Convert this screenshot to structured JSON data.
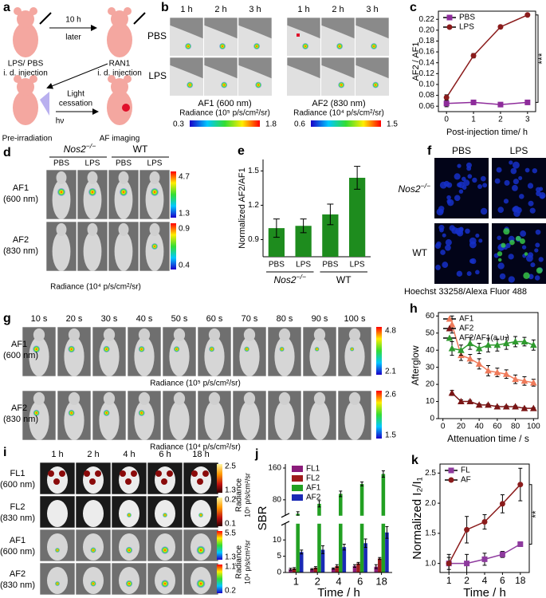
{
  "panels": {
    "a": {
      "label": "a",
      "texts": [
        "LPS/ PBS",
        "i. d. injection",
        "10 h",
        "later",
        "RAN1",
        "i. d. injection",
        "Light",
        "cessation",
        "hν",
        "Pre-irradiation",
        "AF imaging"
      ]
    },
    "b": {
      "label": "b",
      "times": [
        "1 h",
        "2 h",
        "3 h",
        "1 h",
        "2 h",
        "3 h"
      ],
      "rows": [
        "PBS",
        "LPS"
      ],
      "channels": [
        "AF1 (600 nm)",
        "AF2 (830 nm)"
      ],
      "radiance": [
        "Radiance (10⁵ p/s/cm²/sr)",
        "Radiance (10⁴ p/s/cm²/sr)"
      ],
      "colorbars": [
        [
          0.3,
          1.8
        ],
        [
          0.6,
          1.5
        ]
      ]
    },
    "d": {
      "label": "d",
      "groups": [
        {
          "base": "Nos2",
          "sup": "−/−"
        },
        {
          "base": "WT"
        }
      ],
      "columns": [
        "PBS",
        "LPS",
        "PBS",
        "LPS"
      ],
      "rows": [
        [
          "AF1",
          "(600 nm)"
        ],
        [
          "AF2",
          "(830 nm)"
        ]
      ],
      "colorbars": [
        [
          4.7,
          1.3
        ],
        [
          0.9,
          0.4
        ]
      ],
      "radiance": "Radiance (10⁴ p/s/cm²/sr)"
    },
    "f": {
      "label": "f",
      "columns": [
        "PBS",
        "LPS"
      ],
      "rows": [
        {
          "base": "Nos2",
          "sup": "−/−"
        },
        {
          "base": "WT"
        }
      ],
      "stains": [
        "Hoechst 33258/",
        "Alexa Fluor 488"
      ]
    },
    "g": {
      "label": "g",
      "times": [
        "10 s",
        "20 s",
        "30 s",
        "40 s",
        "50 s",
        "60 s",
        "70 s",
        "80 s",
        "90 s",
        "100 s"
      ],
      "rows": [
        [
          "AF1",
          "(600 nm)"
        ],
        [
          "AF2",
          "(830 nm)"
        ]
      ],
      "colorbars": [
        [
          4.8,
          2.1
        ],
        [
          2.6,
          1.5
        ]
      ],
      "radiance": [
        "Radiance (10⁵ p/s/cm²/sr)",
        "Radiance (10⁴ p/s/cm²/sr)"
      ]
    },
    "i": {
      "label": "i",
      "times": [
        "1 h",
        "2 h",
        "4 h",
        "6 h",
        "18 h"
      ],
      "rows": [
        [
          "FL1",
          "(600 nm)"
        ],
        [
          "FL2",
          "(830 nm)"
        ],
        [
          "AF1",
          "(600 nm)"
        ],
        [
          "AF2",
          "(830 nm)"
        ]
      ],
      "colorbars": [
        [
          2.5,
          1.3
        ],
        [
          0.2,
          0.1
        ],
        [
          5.5,
          1.3
        ],
        [
          1.1,
          0.2
        ]
      ],
      "radiance": [
        [
          "Radiance",
          "10⁵ p/s/cm²/sr"
        ],
        [
          "Radiance",
          "10⁴ p/s/cm²/sr"
        ]
      ]
    }
  },
  "chart_data": [
    {
      "type": "line",
      "panel": "c",
      "x": [
        0,
        1,
        2,
        3
      ],
      "xlim": [
        -0.3,
        3.3
      ],
      "xticks": [
        0,
        1,
        2,
        3
      ],
      "ylim": [
        0.05,
        0.235
      ],
      "yticks": [
        0.06,
        0.08,
        {
          "value": 0.1,
          "label": "0.10"
        },
        0.12,
        0.14,
        0.16,
        0.18,
        {
          "value": 0.2,
          "label": "0.20"
        },
        0.22
      ],
      "xlabel": "Post-injection time/ h",
      "ylabel": "AF2 / AF1",
      "legend": "upper left",
      "annotation": "***",
      "series": [
        {
          "name": "PBS",
          "color": "#8e2c9b",
          "marker": "square",
          "values": [
            0.065,
            0.067,
            0.063,
            0.067
          ],
          "errors": [
            0.006,
            0.004,
            0.002,
            0.002
          ]
        },
        {
          "name": "LPS",
          "color": "#8b1c1c",
          "marker": "circle",
          "values": [
            0.076,
            0.153,
            0.206,
            0.228
          ],
          "errors": [
            0.005,
            0.004,
            0.003,
            0.002
          ]
        }
      ]
    },
    {
      "type": "bar",
      "panel": "e",
      "categories": [
        "PBS",
        "LPS",
        "PBS",
        "LPS"
      ],
      "groups": [
        {
          "base": "Nos2",
          "sup": "−/−"
        },
        {
          "base": "WT"
        }
      ],
      "values": [
        1.0,
        1.02,
        1.12,
        1.44
      ],
      "errors": [
        0.08,
        0.06,
        0.09,
        0.1
      ],
      "color": "#1e8c1e",
      "ylim": [
        0.75,
        1.6
      ],
      "yticks": [
        0.9,
        1.2,
        1.5
      ],
      "ylabel": "Normalized AF2/AF1"
    },
    {
      "type": "line",
      "panel": "h",
      "x": [
        10,
        20,
        30,
        40,
        50,
        60,
        70,
        80,
        90,
        100
      ],
      "xlim": [
        -5,
        105
      ],
      "xticks": [
        0,
        20,
        40,
        60,
        80,
        100
      ],
      "ylim": [
        0,
        62
      ],
      "yticks": [
        0,
        10,
        20,
        30,
        40,
        50,
        60
      ],
      "xlabel": "Attenuation time / s",
      "ylabel": "Afterglow",
      "legend": "upper left",
      "series": [
        {
          "name": "AF1",
          "color": "#ef7b5b",
          "marker": "triangle",
          "values": [
            55,
            37,
            35,
            32,
            28,
            27,
            26,
            23,
            22,
            21
          ],
          "errors": [
            5,
            3,
            2.5,
            3,
            3,
            2.5,
            2.5,
            2.5,
            2.5,
            2
          ]
        },
        {
          "name": "AF2",
          "color": "#7a1515",
          "marker": "triangle",
          "values": [
            15,
            10,
            10,
            8,
            8,
            7,
            7,
            7,
            6,
            6
          ],
          "errors": [
            1.5,
            1,
            0.7,
            0.6,
            0.5,
            0.5,
            0.5,
            0.5,
            0.5,
            0.4
          ]
        },
        {
          "name": "AF2/AF1(a.u.)",
          "color": "#2e9a2e",
          "marker": "triangle",
          "values": [
            41,
            40,
            44,
            41,
            43,
            43,
            44,
            45,
            45,
            43
          ],
          "errors": [
            4,
            3,
            3.5,
            3,
            4,
            3.5,
            3.5,
            3,
            2.5,
            3
          ]
        }
      ]
    },
    {
      "type": "grouped_bar",
      "panel": "j",
      "categories": [
        "1",
        "2",
        "4",
        "6",
        "18"
      ],
      "ylim": [
        0,
        170
      ],
      "axis_break": [
        15,
        40
      ],
      "yticks": [
        0,
        5,
        10,
        80,
        160
      ],
      "xlabel": "Time / h",
      "ylabel": "SBR",
      "legend": "upper left",
      "series": [
        {
          "name": "FL1",
          "color": "#8b1c7a",
          "values": [
            1,
            1,
            1.2,
            2,
            1.8
          ],
          "errors": [
            0.3,
            0.2,
            0.2,
            0.4,
            0.6
          ]
        },
        {
          "name": "FL2",
          "color": "#9e1b1b",
          "values": [
            1.2,
            1.5,
            2,
            2.8,
            4.3
          ],
          "errors": [
            0.3,
            0.3,
            0.4,
            0.3,
            0.3
          ]
        },
        {
          "name": "AF1",
          "color": "#22a022",
          "values": [
            45,
            70,
            95,
            120,
            145
          ],
          "errors": [
            5,
            8,
            7,
            5,
            8
          ]
        },
        {
          "name": "AF2",
          "color": "#1a2ab5",
          "values": [
            6.3,
            7,
            7.8,
            9,
            12.3
          ],
          "errors": [
            0.6,
            1.2,
            0.9,
            1.3,
            1.8
          ]
        }
      ]
    },
    {
      "type": "line",
      "panel": "k",
      "categories": [
        "1",
        "2",
        "4",
        "6",
        "18"
      ],
      "ylim": [
        0.85,
        2.65
      ],
      "yticks": [
        {
          "value": 1,
          "label": "1.0"
        },
        1.5,
        {
          "value": 2,
          "label": "2.0"
        },
        2.5
      ],
      "xlabel": "Time / h",
      "ylabel": "Normalized I₂/I₁",
      "legend": "upper left",
      "annotation": "**",
      "series": [
        {
          "name": "FL",
          "color": "#8e3a9e",
          "marker": "square",
          "values": [
            1.0,
            1.0,
            1.07,
            1.15,
            1.32
          ],
          "errors": [
            0.1,
            0.15,
            0.1,
            0.05,
            0.04
          ]
        },
        {
          "name": "AF",
          "color": "#8b1c1c",
          "marker": "circle",
          "values": [
            1.0,
            1.56,
            1.69,
            1.99,
            2.31
          ],
          "errors": [
            0.15,
            0.22,
            0.12,
            0.15,
            0.27
          ]
        }
      ]
    }
  ]
}
